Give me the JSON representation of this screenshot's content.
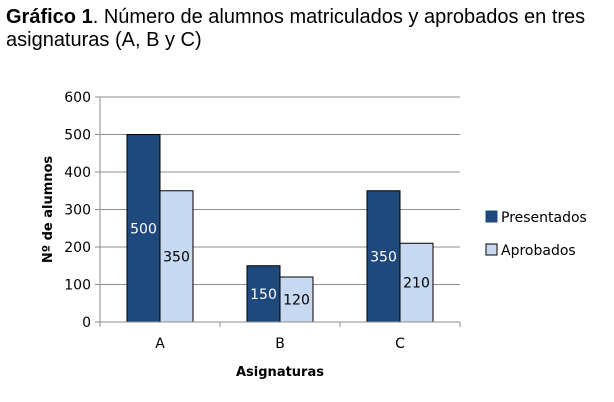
{
  "caption": {
    "prefix": "Gráfico 1",
    "text": ". Número de alumnos matriculados y aprobados en tres asignaturas (A, B y C)"
  },
  "chart_data": {
    "type": "bar",
    "categories": [
      "A",
      "B",
      "C"
    ],
    "series": [
      {
        "name": "Presentados",
        "values": [
          500,
          150,
          350
        ],
        "color": "#1F497D"
      },
      {
        "name": "Aprobados",
        "values": [
          350,
          120,
          210
        ],
        "color": "#C6D9F1"
      }
    ],
    "xlabel": "Asignaturas",
    "ylabel": "Nº de alumnos",
    "ylim": [
      0,
      600
    ],
    "yticks": [
      0,
      100,
      200,
      300,
      400,
      500,
      600
    ],
    "grid": true,
    "legend": "right",
    "data_labels": true
  }
}
